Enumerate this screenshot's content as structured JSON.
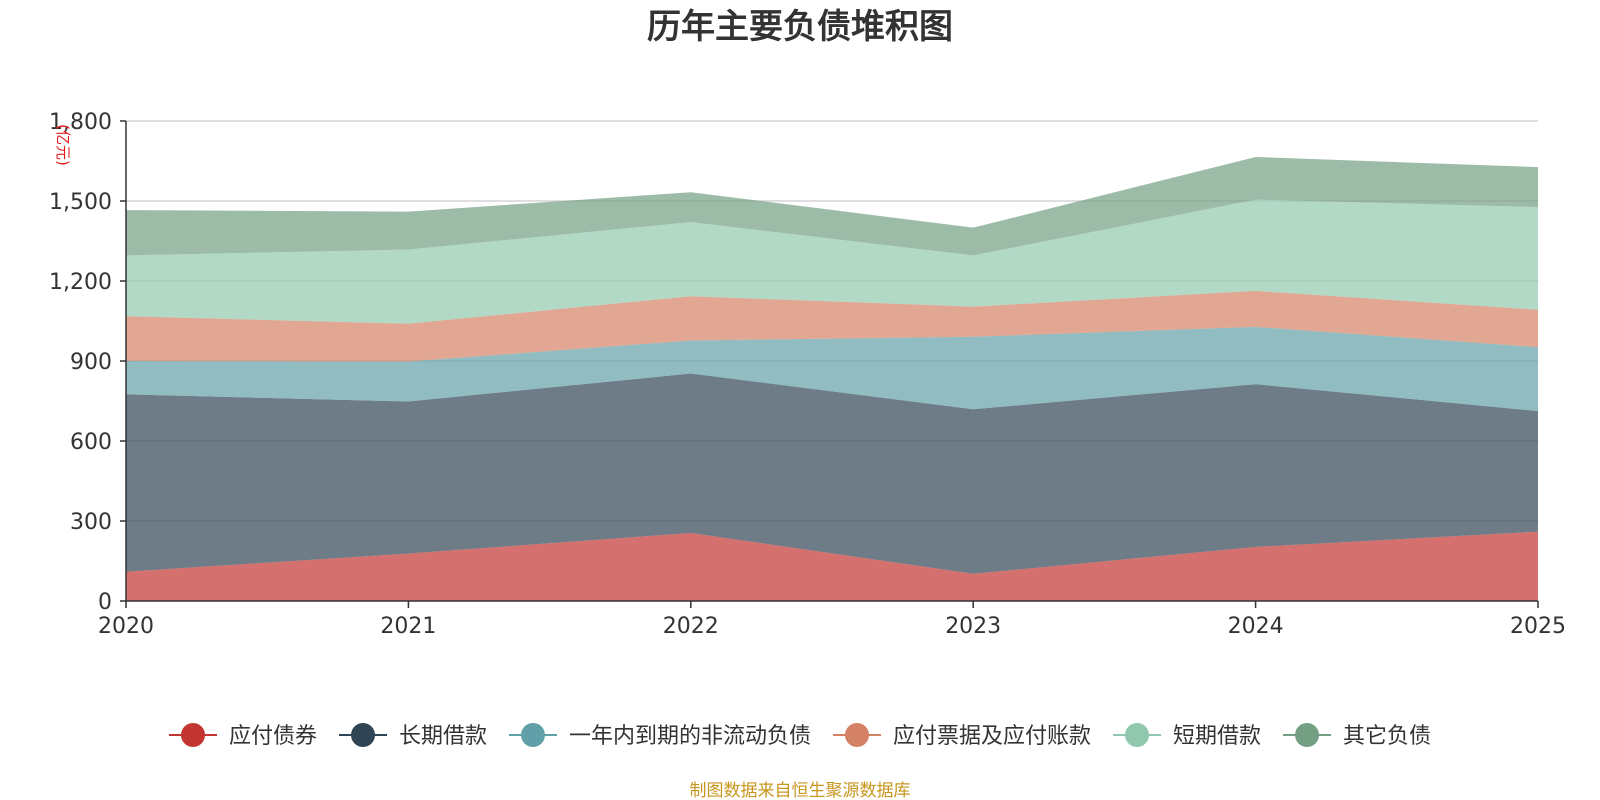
{
  "chart_data": {
    "type": "area",
    "stacked": true,
    "title": "历年主要负债堆积图",
    "ylabel": "(亿元)",
    "xlabel": "",
    "x": [
      "2020",
      "2021",
      "2022",
      "2023",
      "2024",
      "2025"
    ],
    "ylim": [
      0,
      1800
    ],
    "yticks": [
      "0",
      "300",
      "600",
      "900",
      "1,200",
      "1,500",
      "1,800"
    ],
    "grid": true,
    "legend_position": "bottom",
    "series": [
      {
        "name": "应付债券",
        "color": "#c23531",
        "values": [
          110,
          178,
          255,
          102,
          203,
          260
        ]
      },
      {
        "name": "长期借款",
        "color": "#2f4554",
        "values": [
          665,
          570,
          598,
          617,
          610,
          452
        ]
      },
      {
        "name": "一年内到期的非流动负债",
        "color": "#61a0a8",
        "values": [
          125,
          150,
          124,
          272,
          215,
          240
        ]
      },
      {
        "name": "应付票据及应付账款",
        "color": "#d48265",
        "values": [
          168,
          142,
          166,
          113,
          135,
          140
        ]
      },
      {
        "name": "短期借款",
        "color": "#91c7ae",
        "values": [
          228,
          278,
          278,
          192,
          342,
          385
        ]
      },
      {
        "name": "其它负债",
        "color": "#749f83",
        "values": [
          170,
          142,
          112,
          104,
          160,
          150
        ]
      }
    ],
    "source": "制图数据来自恒生聚源数据库"
  }
}
